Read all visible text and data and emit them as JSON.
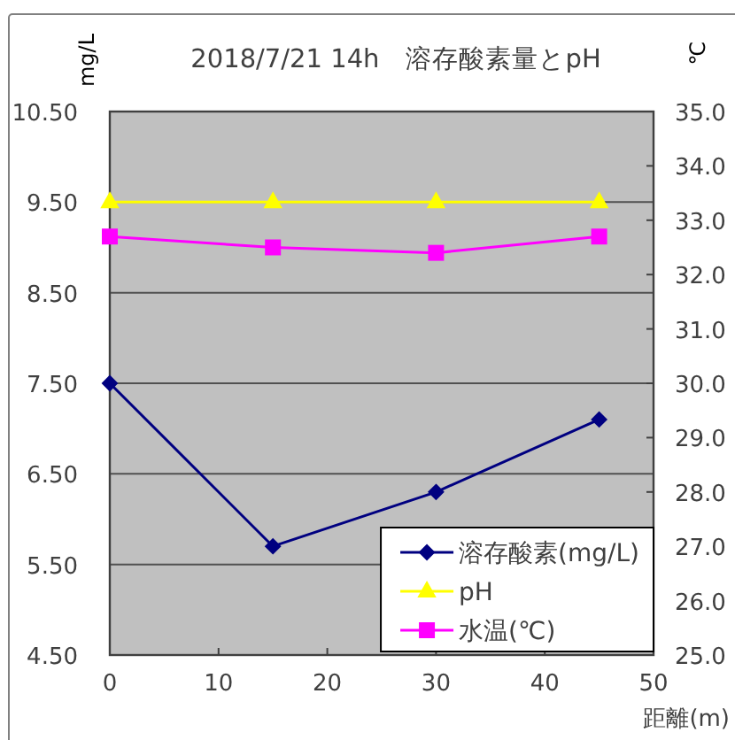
{
  "chart_data": {
    "type": "line",
    "title": "2018/7/21 14h　溶存酸素量とpH",
    "xlabel": "距離(m)",
    "ylabel": "mg/L",
    "y2label": "℃",
    "x": [
      0,
      15,
      30,
      45
    ],
    "xlim": [
      0,
      50
    ],
    "xticks": [
      0,
      10,
      20,
      30,
      40,
      50
    ],
    "ylim": [
      4.5,
      10.5
    ],
    "yticks": [
      {
        "value": 4.5,
        "label": "4.50"
      },
      {
        "value": 5.5,
        "label": "5.50"
      },
      {
        "value": 6.5,
        "label": "6.50"
      },
      {
        "value": 7.5,
        "label": "7.50"
      },
      {
        "value": 8.5,
        "label": "8.50"
      },
      {
        "value": 9.5,
        "label": "9.50"
      },
      {
        "value": 10.5,
        "label": "10.50"
      }
    ],
    "y2lim": [
      25,
      35
    ],
    "y2ticks": [
      {
        "value": 25,
        "label": "25.0"
      },
      {
        "value": 26,
        "label": "26.0"
      },
      {
        "value": 27,
        "label": "27.0"
      },
      {
        "value": 28,
        "label": "28.0"
      },
      {
        "value": 29,
        "label": "29.0"
      },
      {
        "value": 30,
        "label": "30.0"
      },
      {
        "value": 31,
        "label": "31.0"
      },
      {
        "value": 32,
        "label": "32.0"
      },
      {
        "value": 33,
        "label": "33.0"
      },
      {
        "value": 34,
        "label": "34.0"
      },
      {
        "value": 35,
        "label": "35.0"
      }
    ],
    "series": [
      {
        "name": "溶存酸素(mg/L)",
        "color": "#000080",
        "values": [
          7.5,
          5.7,
          6.3,
          7.1
        ],
        "marker": "diamond"
      },
      {
        "name": "pH",
        "color": "#ffff00",
        "values": [
          9.5,
          9.5,
          9.5,
          9.5
        ],
        "marker": "triangle"
      },
      {
        "name": "水温(℃)",
        "color": "#ff00ff",
        "values": [
          32.7,
          32.5,
          32.4,
          32.7
        ],
        "marker": "square",
        "axis": "y2"
      }
    ],
    "grid": "y",
    "legend": "bottom right"
  }
}
